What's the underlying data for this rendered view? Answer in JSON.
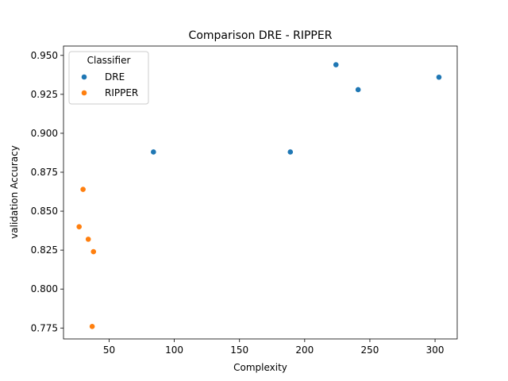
{
  "chart_data": {
    "type": "scatter",
    "title": "Comparison DRE - RIPPER",
    "xlabel": "Complexity",
    "ylabel": "validation Accuracy",
    "xlim": [
      15,
      317
    ],
    "ylim": [
      0.768,
      0.956
    ],
    "xticks": [
      50,
      100,
      150,
      200,
      250,
      300
    ],
    "yticks": [
      0.775,
      0.8,
      0.825,
      0.85,
      0.875,
      0.9,
      0.925,
      0.95
    ],
    "grid": false,
    "legend": {
      "title": "Classifier",
      "placement": "upper-left"
    },
    "series": [
      {
        "name": "DRE",
        "color": "#1f77b4",
        "points": [
          {
            "x": 84,
            "y": 0.888
          },
          {
            "x": 189,
            "y": 0.888
          },
          {
            "x": 224,
            "y": 0.944
          },
          {
            "x": 241,
            "y": 0.928
          },
          {
            "x": 303,
            "y": 0.936
          }
        ]
      },
      {
        "name": "RIPPER",
        "color": "#ff7f0e",
        "points": [
          {
            "x": 30,
            "y": 0.864
          },
          {
            "x": 27,
            "y": 0.84
          },
          {
            "x": 34,
            "y": 0.832
          },
          {
            "x": 38,
            "y": 0.824
          },
          {
            "x": 37,
            "y": 0.776
          }
        ]
      }
    ]
  }
}
